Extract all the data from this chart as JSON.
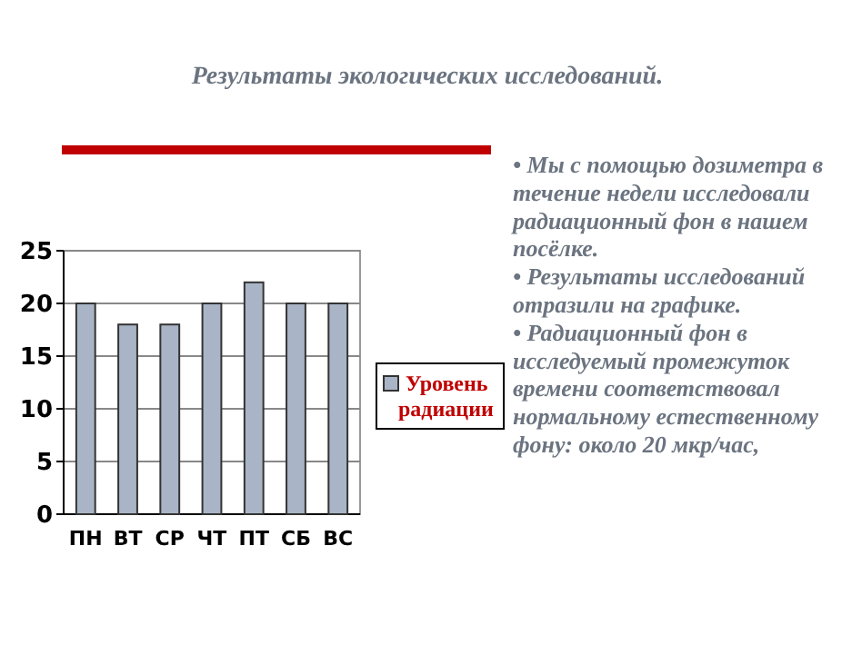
{
  "chart_data": {
    "type": "bar",
    "title": "Результаты экологических исследований.",
    "categories": [
      "ПН",
      "ВТ",
      "СР",
      "ЧТ",
      "ПТ",
      "СБ",
      "ВС"
    ],
    "series": [
      {
        "name": "Уровень радиации",
        "color": "#a9b5c6",
        "values": [
          20,
          18,
          18,
          20,
          22,
          20,
          20
        ]
      }
    ],
    "ylim": [
      0,
      25
    ],
    "yticks": [
      0,
      5,
      10,
      15,
      20,
      25
    ],
    "grid": "y",
    "legend": "right",
    "annotations": [
      "• Мы с помощью дозиметра в течение недели исследовали радиационный фон в нашем посёлке.",
      "• Результаты исследований отразили на графике.",
      "• Радиационный фон в исследуемый промежуток времени соответствовал нормальному естественному фону: около 20 мкр/час,"
    ]
  }
}
